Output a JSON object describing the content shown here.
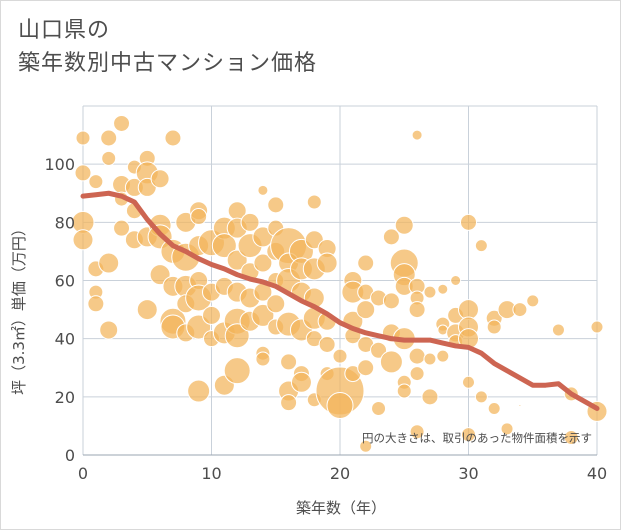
{
  "title": {
    "line1": "山口県の",
    "line2": "築年数別中古マンション価格"
  },
  "chart_data": {
    "type": "scatter",
    "xlabel": "築年数（年）",
    "ylabel": "坪（3.3㎡）単価（万円）",
    "xlim": [
      0,
      40
    ],
    "ylim": [
      0,
      120
    ],
    "xticks": [
      "0",
      "10",
      "20",
      "30",
      "40"
    ],
    "yticks": [
      "0",
      "20",
      "40",
      "60",
      "80",
      "100"
    ],
    "grid": true,
    "annotation": "円の大きさは、取引のあった物件面積を示す",
    "colors": {
      "bubble": "#f2b45a",
      "bubble_edge": "#ffffff",
      "trend": "#cd6552",
      "grid": "#c9d1da"
    },
    "trend_line": {
      "x": [
        0,
        1,
        2,
        3,
        4,
        5,
        6,
        7,
        8,
        9,
        10,
        11,
        12,
        13,
        14,
        15,
        16,
        17,
        18,
        19,
        20,
        21,
        22,
        23,
        24,
        25,
        26,
        27,
        28,
        29,
        30,
        31,
        32,
        33,
        34,
        35,
        36,
        37,
        38,
        39,
        40
      ],
      "y": [
        89,
        89.5,
        90,
        89,
        87,
        81,
        76,
        72,
        70,
        67.5,
        65.5,
        64,
        62,
        60.5,
        59.5,
        58,
        55.5,
        53,
        51,
        48.5,
        45.5,
        43.5,
        42,
        41,
        40,
        39.5,
        39.5,
        39.5,
        38.5,
        37.5,
        37,
        35,
        31.5,
        29,
        26.5,
        24,
        24,
        24.5,
        21,
        18.5,
        16
      ]
    },
    "bubbles": [
      {
        "x": 0,
        "y": 109,
        "s": 7
      },
      {
        "x": 0,
        "y": 97,
        "s": 8
      },
      {
        "x": 0,
        "y": 80,
        "s": 11
      },
      {
        "x": 0,
        "y": 74,
        "s": 10
      },
      {
        "x": 1,
        "y": 94,
        "s": 7
      },
      {
        "x": 1,
        "y": 64,
        "s": 8
      },
      {
        "x": 1,
        "y": 56,
        "s": 7
      },
      {
        "x": 1,
        "y": 52,
        "s": 8
      },
      {
        "x": 2,
        "y": 109,
        "s": 8
      },
      {
        "x": 2,
        "y": 102,
        "s": 7
      },
      {
        "x": 2,
        "y": 66,
        "s": 10
      },
      {
        "x": 2,
        "y": 43,
        "s": 9
      },
      {
        "x": 3,
        "y": 114,
        "s": 8
      },
      {
        "x": 3,
        "y": 93,
        "s": 9
      },
      {
        "x": 3,
        "y": 88,
        "s": 7
      },
      {
        "x": 3,
        "y": 78,
        "s": 8
      },
      {
        "x": 4,
        "y": 99,
        "s": 7
      },
      {
        "x": 4,
        "y": 92,
        "s": 9
      },
      {
        "x": 4,
        "y": 84,
        "s": 8
      },
      {
        "x": 4,
        "y": 74,
        "s": 9
      },
      {
        "x": 5,
        "y": 102,
        "s": 8
      },
      {
        "x": 5,
        "y": 97,
        "s": 11
      },
      {
        "x": 5,
        "y": 92,
        "s": 9
      },
      {
        "x": 5,
        "y": 75,
        "s": 10
      },
      {
        "x": 5,
        "y": 50,
        "s": 10
      },
      {
        "x": 6,
        "y": 95,
        "s": 9
      },
      {
        "x": 6,
        "y": 79,
        "s": 11
      },
      {
        "x": 6,
        "y": 75,
        "s": 12
      },
      {
        "x": 6,
        "y": 62,
        "s": 10
      },
      {
        "x": 7,
        "y": 109,
        "s": 8
      },
      {
        "x": 7,
        "y": 70,
        "s": 12
      },
      {
        "x": 7,
        "y": 58,
        "s": 10
      },
      {
        "x": 7,
        "y": 46,
        "s": 13
      },
      {
        "x": 7,
        "y": 44,
        "s": 12
      },
      {
        "x": 8,
        "y": 80,
        "s": 10
      },
      {
        "x": 8,
        "y": 68,
        "s": 14
      },
      {
        "x": 8,
        "y": 58,
        "s": 11
      },
      {
        "x": 8,
        "y": 52,
        "s": 9
      },
      {
        "x": 8,
        "y": 42,
        "s": 9
      },
      {
        "x": 9,
        "y": 84,
        "s": 9
      },
      {
        "x": 9,
        "y": 82,
        "s": 8
      },
      {
        "x": 9,
        "y": 72,
        "s": 10
      },
      {
        "x": 9,
        "y": 60,
        "s": 9
      },
      {
        "x": 9,
        "y": 54,
        "s": 13
      },
      {
        "x": 9,
        "y": 44,
        "s": 12
      },
      {
        "x": 9,
        "y": 22,
        "s": 11
      },
      {
        "x": 10,
        "y": 73,
        "s": 13
      },
      {
        "x": 10,
        "y": 56,
        "s": 9
      },
      {
        "x": 10,
        "y": 48,
        "s": 9
      },
      {
        "x": 10,
        "y": 40,
        "s": 8
      },
      {
        "x": 11,
        "y": 78,
        "s": 11
      },
      {
        "x": 11,
        "y": 72,
        "s": 12
      },
      {
        "x": 11,
        "y": 58,
        "s": 9
      },
      {
        "x": 11,
        "y": 42,
        "s": 11
      },
      {
        "x": 11,
        "y": 24,
        "s": 10
      },
      {
        "x": 12,
        "y": 84,
        "s": 9
      },
      {
        "x": 12,
        "y": 78,
        "s": 10
      },
      {
        "x": 12,
        "y": 67,
        "s": 10
      },
      {
        "x": 12,
        "y": 56,
        "s": 10
      },
      {
        "x": 12,
        "y": 46,
        "s": 13
      },
      {
        "x": 12,
        "y": 41,
        "s": 12
      },
      {
        "x": 12,
        "y": 29,
        "s": 13
      },
      {
        "x": 13,
        "y": 80,
        "s": 9
      },
      {
        "x": 13,
        "y": 72,
        "s": 12
      },
      {
        "x": 13,
        "y": 63,
        "s": 9
      },
      {
        "x": 13,
        "y": 54,
        "s": 10
      },
      {
        "x": 13,
        "y": 46,
        "s": 10
      },
      {
        "x": 14,
        "y": 91,
        "s": 5
      },
      {
        "x": 14,
        "y": 75,
        "s": 10
      },
      {
        "x": 14,
        "y": 66,
        "s": 9
      },
      {
        "x": 14,
        "y": 56,
        "s": 9
      },
      {
        "x": 14,
        "y": 48,
        "s": 11
      },
      {
        "x": 14,
        "y": 35,
        "s": 7
      },
      {
        "x": 14,
        "y": 33,
        "s": 7
      },
      {
        "x": 15,
        "y": 86,
        "s": 8
      },
      {
        "x": 15,
        "y": 78,
        "s": 8
      },
      {
        "x": 15,
        "y": 70,
        "s": 9
      },
      {
        "x": 15,
        "y": 60,
        "s": 8
      },
      {
        "x": 15,
        "y": 52,
        "s": 9
      },
      {
        "x": 15,
        "y": 44,
        "s": 8
      },
      {
        "x": 16,
        "y": 72,
        "s": 18
      },
      {
        "x": 16,
        "y": 66,
        "s": 10
      },
      {
        "x": 16,
        "y": 60,
        "s": 12
      },
      {
        "x": 16,
        "y": 45,
        "s": 12
      },
      {
        "x": 16,
        "y": 32,
        "s": 8
      },
      {
        "x": 16,
        "y": 22,
        "s": 10
      },
      {
        "x": 16,
        "y": 18,
        "s": 8
      },
      {
        "x": 17,
        "y": 70,
        "s": 12
      },
      {
        "x": 17,
        "y": 64,
        "s": 11
      },
      {
        "x": 17,
        "y": 56,
        "s": 10
      },
      {
        "x": 17,
        "y": 43,
        "s": 11
      },
      {
        "x": 17,
        "y": 28,
        "s": 8
      },
      {
        "x": 17,
        "y": 25,
        "s": 10
      },
      {
        "x": 18,
        "y": 87,
        "s": 7
      },
      {
        "x": 18,
        "y": 74,
        "s": 9
      },
      {
        "x": 18,
        "y": 64,
        "s": 11
      },
      {
        "x": 18,
        "y": 54,
        "s": 10
      },
      {
        "x": 18,
        "y": 47,
        "s": 11
      },
      {
        "x": 18,
        "y": 40,
        "s": 8
      },
      {
        "x": 18,
        "y": 19,
        "s": 7
      },
      {
        "x": 19,
        "y": 71,
        "s": 9
      },
      {
        "x": 19,
        "y": 66,
        "s": 10
      },
      {
        "x": 19,
        "y": 46,
        "s": 9
      },
      {
        "x": 19,
        "y": 38,
        "s": 8
      },
      {
        "x": 19,
        "y": 28,
        "s": 7
      },
      {
        "x": 20,
        "y": 34,
        "s": 7
      },
      {
        "x": 20,
        "y": 22,
        "s": 24
      },
      {
        "x": 20,
        "y": 17,
        "s": 13
      },
      {
        "x": 21,
        "y": 60,
        "s": 9
      },
      {
        "x": 21,
        "y": 56,
        "s": 11
      },
      {
        "x": 21,
        "y": 46,
        "s": 10
      },
      {
        "x": 21,
        "y": 41,
        "s": 8
      },
      {
        "x": 21,
        "y": 28,
        "s": 8
      },
      {
        "x": 22,
        "y": 66,
        "s": 8
      },
      {
        "x": 22,
        "y": 56,
        "s": 8
      },
      {
        "x": 22,
        "y": 50,
        "s": 9
      },
      {
        "x": 22,
        "y": 38,
        "s": 8
      },
      {
        "x": 22,
        "y": 30,
        "s": 8
      },
      {
        "x": 22,
        "y": 3,
        "s": 6
      },
      {
        "x": 23,
        "y": 54,
        "s": 8
      },
      {
        "x": 23,
        "y": 36,
        "s": 8
      },
      {
        "x": 23,
        "y": 16,
        "s": 7
      },
      {
        "x": 24,
        "y": 75,
        "s": 8
      },
      {
        "x": 24,
        "y": 53,
        "s": 8
      },
      {
        "x": 24,
        "y": 32,
        "s": 11
      },
      {
        "x": 24,
        "y": 42,
        "s": 9
      },
      {
        "x": 25,
        "y": 79,
        "s": 9
      },
      {
        "x": 25,
        "y": 66,
        "s": 14
      },
      {
        "x": 25,
        "y": 62,
        "s": 11
      },
      {
        "x": 25,
        "y": 58,
        "s": 9
      },
      {
        "x": 25,
        "y": 40,
        "s": 11
      },
      {
        "x": 25,
        "y": 25,
        "s": 7
      },
      {
        "x": 25,
        "y": 22,
        "s": 7
      },
      {
        "x": 26,
        "y": 110,
        "s": 5
      },
      {
        "x": 26,
        "y": 58,
        "s": 8
      },
      {
        "x": 26,
        "y": 54,
        "s": 7
      },
      {
        "x": 26,
        "y": 50,
        "s": 8
      },
      {
        "x": 26,
        "y": 34,
        "s": 8
      },
      {
        "x": 26,
        "y": 28,
        "s": 7
      },
      {
        "x": 26,
        "y": 8,
        "s": 7
      },
      {
        "x": 27,
        "y": 56,
        "s": 6
      },
      {
        "x": 27,
        "y": 33,
        "s": 6
      },
      {
        "x": 27,
        "y": 20,
        "s": 8
      },
      {
        "x": 28,
        "y": 57,
        "s": 5
      },
      {
        "x": 28,
        "y": 45,
        "s": 7
      },
      {
        "x": 28,
        "y": 43,
        "s": 5
      },
      {
        "x": 28,
        "y": 34,
        "s": 6
      },
      {
        "x": 29,
        "y": 60,
        "s": 5
      },
      {
        "x": 29,
        "y": 48,
        "s": 8
      },
      {
        "x": 29,
        "y": 42,
        "s": 9
      },
      {
        "x": 29,
        "y": 39,
        "s": 7
      },
      {
        "x": 30,
        "y": 80,
        "s": 8
      },
      {
        "x": 30,
        "y": 50,
        "s": 10
      },
      {
        "x": 30,
        "y": 44,
        "s": 10
      },
      {
        "x": 30,
        "y": 40,
        "s": 10
      },
      {
        "x": 30,
        "y": 25,
        "s": 6
      },
      {
        "x": 30,
        "y": 7,
        "s": 7
      },
      {
        "x": 31,
        "y": 72,
        "s": 6
      },
      {
        "x": 31,
        "y": 20,
        "s": 6
      },
      {
        "x": 32,
        "y": 47,
        "s": 8
      },
      {
        "x": 32,
        "y": 44,
        "s": 7
      },
      {
        "x": 32,
        "y": 16,
        "s": 6
      },
      {
        "x": 33,
        "y": 50,
        "s": 9
      },
      {
        "x": 33,
        "y": 9,
        "s": 6
      },
      {
        "x": 34,
        "y": 50,
        "s": 7
      },
      {
        "x": 34,
        "y": 17,
        "s": 1
      },
      {
        "x": 35,
        "y": 53,
        "s": 6
      },
      {
        "x": 37,
        "y": 43,
        "s": 6
      },
      {
        "x": 38,
        "y": 21,
        "s": 7
      },
      {
        "x": 38,
        "y": 6,
        "s": 7
      },
      {
        "x": 40,
        "y": 44,
        "s": 6
      },
      {
        "x": 40,
        "y": 15,
        "s": 10
      }
    ]
  }
}
